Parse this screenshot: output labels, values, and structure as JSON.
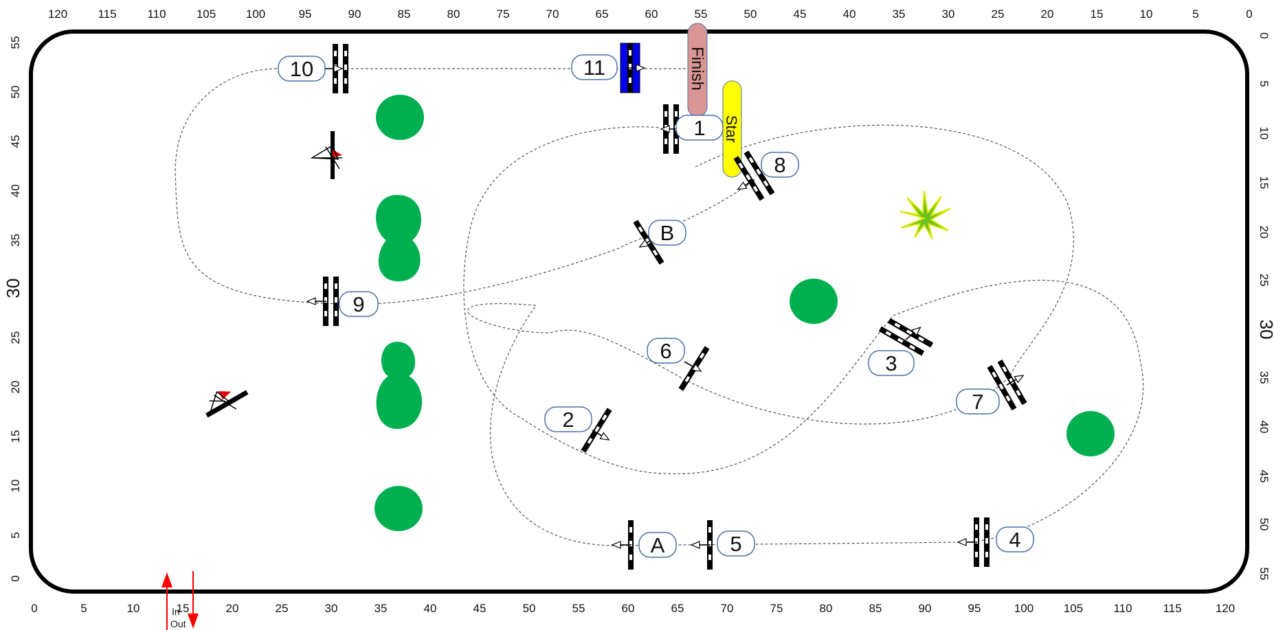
{
  "course": {
    "x_axis_ticks": [
      "0",
      "5",
      "10",
      "15",
      "20",
      "25",
      "30",
      "35",
      "40",
      "45",
      "50",
      "55",
      "60",
      "65",
      "70",
      "75",
      "80",
      "85",
      "90",
      "95",
      "100",
      "105",
      "110",
      "115",
      "120"
    ],
    "top_axis_ticks": [
      "120",
      "115",
      "110",
      "105",
      "100",
      "95",
      "90",
      "85",
      "80",
      "75",
      "70",
      "65",
      "60",
      "55",
      "50",
      "45",
      "40",
      "35",
      "30",
      "25",
      "20",
      "15",
      "10",
      "5",
      "0"
    ],
    "y_axis_ticks": [
      "55",
      "50",
      "45",
      "40",
      "35",
      "30",
      "25",
      "20",
      "15",
      "10",
      "5",
      "0"
    ],
    "right_axis_ticks": [
      "0",
      "5",
      "10",
      "15",
      "20",
      "25",
      "30",
      "35",
      "40",
      "45",
      "50",
      "55"
    ],
    "gates": [
      {
        "id": "g1",
        "label": "1"
      },
      {
        "id": "g2",
        "label": "2"
      },
      {
        "id": "g3",
        "label": "3"
      },
      {
        "id": "g4",
        "label": "4"
      },
      {
        "id": "g5",
        "label": "5"
      },
      {
        "id": "g6",
        "label": "6"
      },
      {
        "id": "g7",
        "label": "7"
      },
      {
        "id": "g8",
        "label": "8"
      },
      {
        "id": "g9",
        "label": "9"
      },
      {
        "id": "g10",
        "label": "10"
      },
      {
        "id": "g11",
        "label": "11"
      },
      {
        "id": "gA",
        "label": "A"
      },
      {
        "id": "gB",
        "label": "B"
      }
    ],
    "start_label": "Star",
    "finish_label": "Finish",
    "in_label": "In",
    "out_label": "Out",
    "colors": {
      "tree": "#00b050",
      "finish": "#d99694",
      "start": "#ffff00",
      "gate11": "#0000ee",
      "inout": "#ff0000",
      "pill_border": "#4a6fa8"
    }
  }
}
